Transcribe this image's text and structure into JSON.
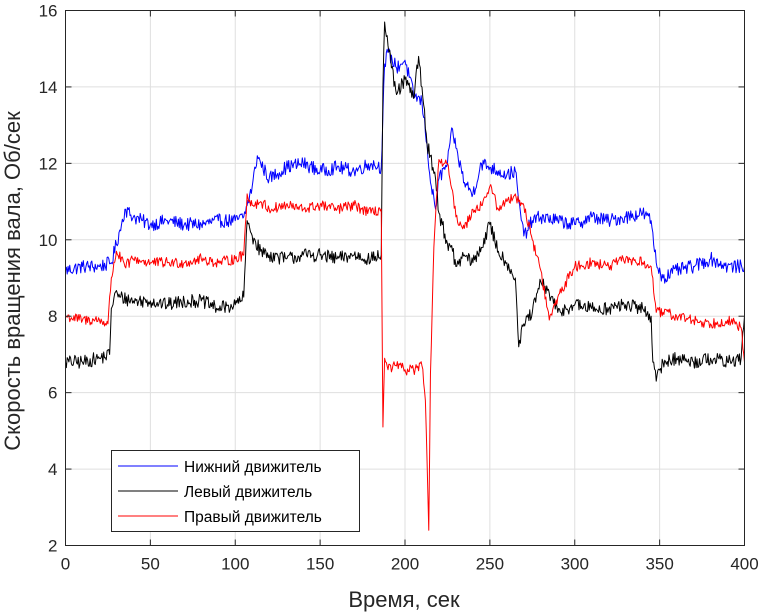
{
  "chart_data": {
    "type": "line",
    "xlabel": "Время, сек",
    "ylabel": "Скорость вращения вала, Об/сек",
    "xlim": [
      0,
      400
    ],
    "ylim": [
      2,
      16
    ],
    "xticks": [
      0,
      50,
      100,
      150,
      200,
      250,
      300,
      350,
      400
    ],
    "yticks": [
      2,
      4,
      6,
      8,
      10,
      12,
      14,
      16
    ],
    "grid": true,
    "legend": "bottom-left",
    "series": [
      {
        "name": "Нижний движитель",
        "color": "#0000ff",
        "noise": 0.18,
        "x": [
          0,
          10,
          20,
          27,
          33,
          35,
          40,
          45,
          50,
          60,
          70,
          80,
          90,
          100,
          105,
          107,
          110,
          113,
          115,
          120,
          130,
          140,
          150,
          160,
          170,
          180,
          186,
          188,
          190,
          195,
          200,
          205,
          210,
          213,
          215,
          218,
          220,
          225,
          228,
          230,
          235,
          240,
          245,
          250,
          255,
          260,
          265,
          267,
          270,
          275,
          280,
          290,
          300,
          310,
          320,
          330,
          340,
          345,
          348,
          352,
          360,
          370,
          380,
          390,
          400
        ],
        "y": [
          9.2,
          9.3,
          9.3,
          9.4,
          10.4,
          10.8,
          10.6,
          10.5,
          10.4,
          10.5,
          10.4,
          10.4,
          10.5,
          10.5,
          10.6,
          10.9,
          11.4,
          12.2,
          12.0,
          11.6,
          11.9,
          12.0,
          11.8,
          11.9,
          11.8,
          12.0,
          11.9,
          14.6,
          14.9,
          14.5,
          14.7,
          13.8,
          13.6,
          12.5,
          11.5,
          10.8,
          11.6,
          12.0,
          12.9,
          12.4,
          11.5,
          11.2,
          12.0,
          11.9,
          11.8,
          11.7,
          11.8,
          11.0,
          10.1,
          10.5,
          10.6,
          10.5,
          10.4,
          10.6,
          10.5,
          10.6,
          10.7,
          10.5,
          9.4,
          9.0,
          9.2,
          9.3,
          9.5,
          9.3,
          9.3
        ]
      },
      {
        "name": "Левый движитель",
        "color": "#000000",
        "noise": 0.18,
        "x": [
          0,
          10,
          20,
          26,
          27,
          29,
          32,
          40,
          50,
          60,
          70,
          80,
          90,
          100,
          105,
          107,
          110,
          115,
          120,
          130,
          140,
          150,
          160,
          170,
          180,
          186,
          187,
          188,
          192,
          195,
          200,
          205,
          208,
          210,
          213,
          215,
          218,
          220,
          225,
          228,
          230,
          235,
          240,
          245,
          250,
          255,
          260,
          265,
          267,
          270,
          275,
          280,
          285,
          290,
          300,
          310,
          320,
          330,
          340,
          345,
          346,
          348,
          352,
          360,
          370,
          380,
          390,
          398,
          400
        ],
        "y": [
          6.8,
          6.8,
          6.9,
          7.0,
          8.2,
          8.6,
          8.5,
          8.4,
          8.4,
          8.3,
          8.4,
          8.4,
          8.2,
          8.3,
          8.5,
          10.5,
          10.1,
          9.7,
          9.6,
          9.5,
          9.6,
          9.6,
          9.5,
          9.6,
          9.5,
          9.6,
          14.0,
          15.7,
          14.5,
          13.8,
          14.2,
          13.7,
          14.8,
          14.0,
          12.5,
          12.2,
          11.6,
          10.7,
          9.9,
          9.7,
          9.3,
          9.6,
          9.4,
          9.8,
          10.4,
          9.7,
          9.4,
          9.0,
          7.2,
          7.8,
          8.1,
          8.9,
          8.6,
          8.1,
          8.3,
          8.2,
          8.2,
          8.3,
          8.2,
          8.0,
          6.8,
          6.3,
          6.8,
          6.9,
          6.8,
          6.9,
          6.8,
          6.9,
          8.0
        ]
      },
      {
        "name": "Правый движитель",
        "color": "#ff0000",
        "noise": 0.14,
        "x": [
          0,
          10,
          20,
          25,
          27,
          30,
          35,
          40,
          50,
          60,
          70,
          80,
          90,
          100,
          105,
          107,
          110,
          115,
          120,
          130,
          140,
          150,
          160,
          170,
          180,
          186,
          187,
          188,
          190,
          195,
          200,
          205,
          210,
          212,
          214,
          215,
          217,
          220,
          225,
          230,
          235,
          240,
          245,
          250,
          255,
          260,
          265,
          267,
          270,
          275,
          280,
          285,
          290,
          300,
          310,
          320,
          330,
          340,
          345,
          348,
          352,
          360,
          370,
          380,
          390,
          398,
          400
        ],
        "y": [
          8.0,
          7.9,
          7.9,
          7.8,
          9.0,
          9.7,
          9.3,
          9.5,
          9.4,
          9.4,
          9.4,
          9.5,
          9.4,
          9.5,
          9.6,
          11.2,
          10.9,
          11.0,
          10.8,
          10.9,
          10.8,
          10.9,
          10.8,
          10.9,
          10.7,
          10.8,
          5.1,
          6.9,
          6.6,
          6.7,
          6.6,
          6.6,
          6.7,
          5.8,
          2.4,
          6.5,
          9.8,
          12.1,
          12.0,
          10.6,
          10.3,
          10.8,
          10.9,
          11.4,
          10.8,
          11.0,
          11.2,
          11.0,
          10.9,
          10.0,
          9.2,
          7.9,
          8.5,
          9.3,
          9.4,
          9.3,
          9.5,
          9.4,
          9.3,
          8.1,
          8.1,
          8.0,
          7.9,
          7.8,
          7.9,
          7.7,
          6.8
        ]
      }
    ]
  }
}
